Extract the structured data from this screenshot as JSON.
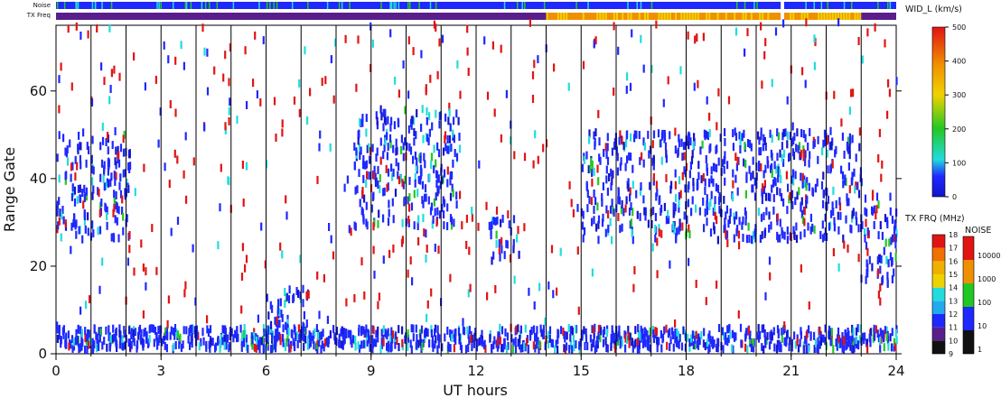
{
  "chart_data": {
    "type": "heatmap",
    "xlabel": "UT hours",
    "ylabel": "Range Gate",
    "xlim": [
      0,
      24
    ],
    "ylim": [
      0,
      75
    ],
    "x_ticks": [
      "0",
      "3",
      "6",
      "9",
      "12",
      "15",
      "18",
      "21",
      "24"
    ],
    "y_ticks": [
      "0",
      "20",
      "40",
      "60"
    ],
    "hour_lines": [
      1,
      2,
      3,
      4,
      5,
      6,
      7,
      8,
      9,
      10,
      11,
      12,
      13,
      14,
      15,
      16,
      17,
      18,
      19,
      20,
      21,
      22,
      23
    ],
    "colorbar_width": {
      "title": "WID_L (km/s)",
      "min": 0,
      "max": 500,
      "labels": [
        "0",
        "100",
        "200",
        "300",
        "400",
        "500"
      ]
    },
    "colorbar_txfreq": {
      "title": "TX FRQ (MHz)",
      "labels": [
        "9",
        "10",
        "11",
        "12",
        "13",
        "14",
        "15",
        "16",
        "17",
        "18"
      ]
    },
    "colorbar_noise": {
      "title": "NOISE",
      "labels": [
        "1",
        "10",
        "100",
        "1000",
        "10000"
      ]
    },
    "noise_bar": {
      "label": "Noise",
      "dominant": "blue",
      "gap_hours": [
        [
          20.7,
          20.8
        ]
      ]
    },
    "txfreq_bar": {
      "label": "TX Freq",
      "segments": [
        {
          "from": 0,
          "to": 14.0,
          "color": "purple"
        },
        {
          "from": 14.0,
          "to": 20.7,
          "color": "orange"
        },
        {
          "from": 20.8,
          "to": 23.0,
          "color": "orange"
        },
        {
          "from": 23.0,
          "to": 24,
          "color": "purple"
        }
      ]
    },
    "scatter_regions": [
      {
        "x": [
          0.0,
          2.1
        ],
        "y": [
          25,
          50
        ],
        "level": "low",
        "note": "dense blue patch"
      },
      {
        "x": [
          8.5,
          11.5
        ],
        "y": [
          28,
          55
        ],
        "level": "low"
      },
      {
        "x": [
          12.3,
          13.2
        ],
        "y": [
          20,
          30
        ],
        "level": "low"
      },
      {
        "x": [
          15.0,
          23.0
        ],
        "y": [
          25,
          50
        ],
        "level": "low",
        "note": "dense blue band"
      },
      {
        "x": [
          23.0,
          24.0
        ],
        "y": [
          15,
          35
        ],
        "level": "low"
      },
      {
        "x": [
          0,
          24
        ],
        "y": [
          0,
          5
        ],
        "level": "low",
        "note": "near-range echoes"
      },
      {
        "x": [
          6.0,
          7.5
        ],
        "y": [
          2,
          14
        ],
        "level": "low",
        "note": "slanted streaks"
      }
    ]
  },
  "colors": {
    "blue": "#1e28ff",
    "dark_blue": "#1414c8",
    "cyan": "#22dcdc",
    "green": "#22c822",
    "red": "#e11414",
    "purple": "#5a1e8c",
    "orange": "#f09000",
    "yellow": "#f0d200"
  }
}
